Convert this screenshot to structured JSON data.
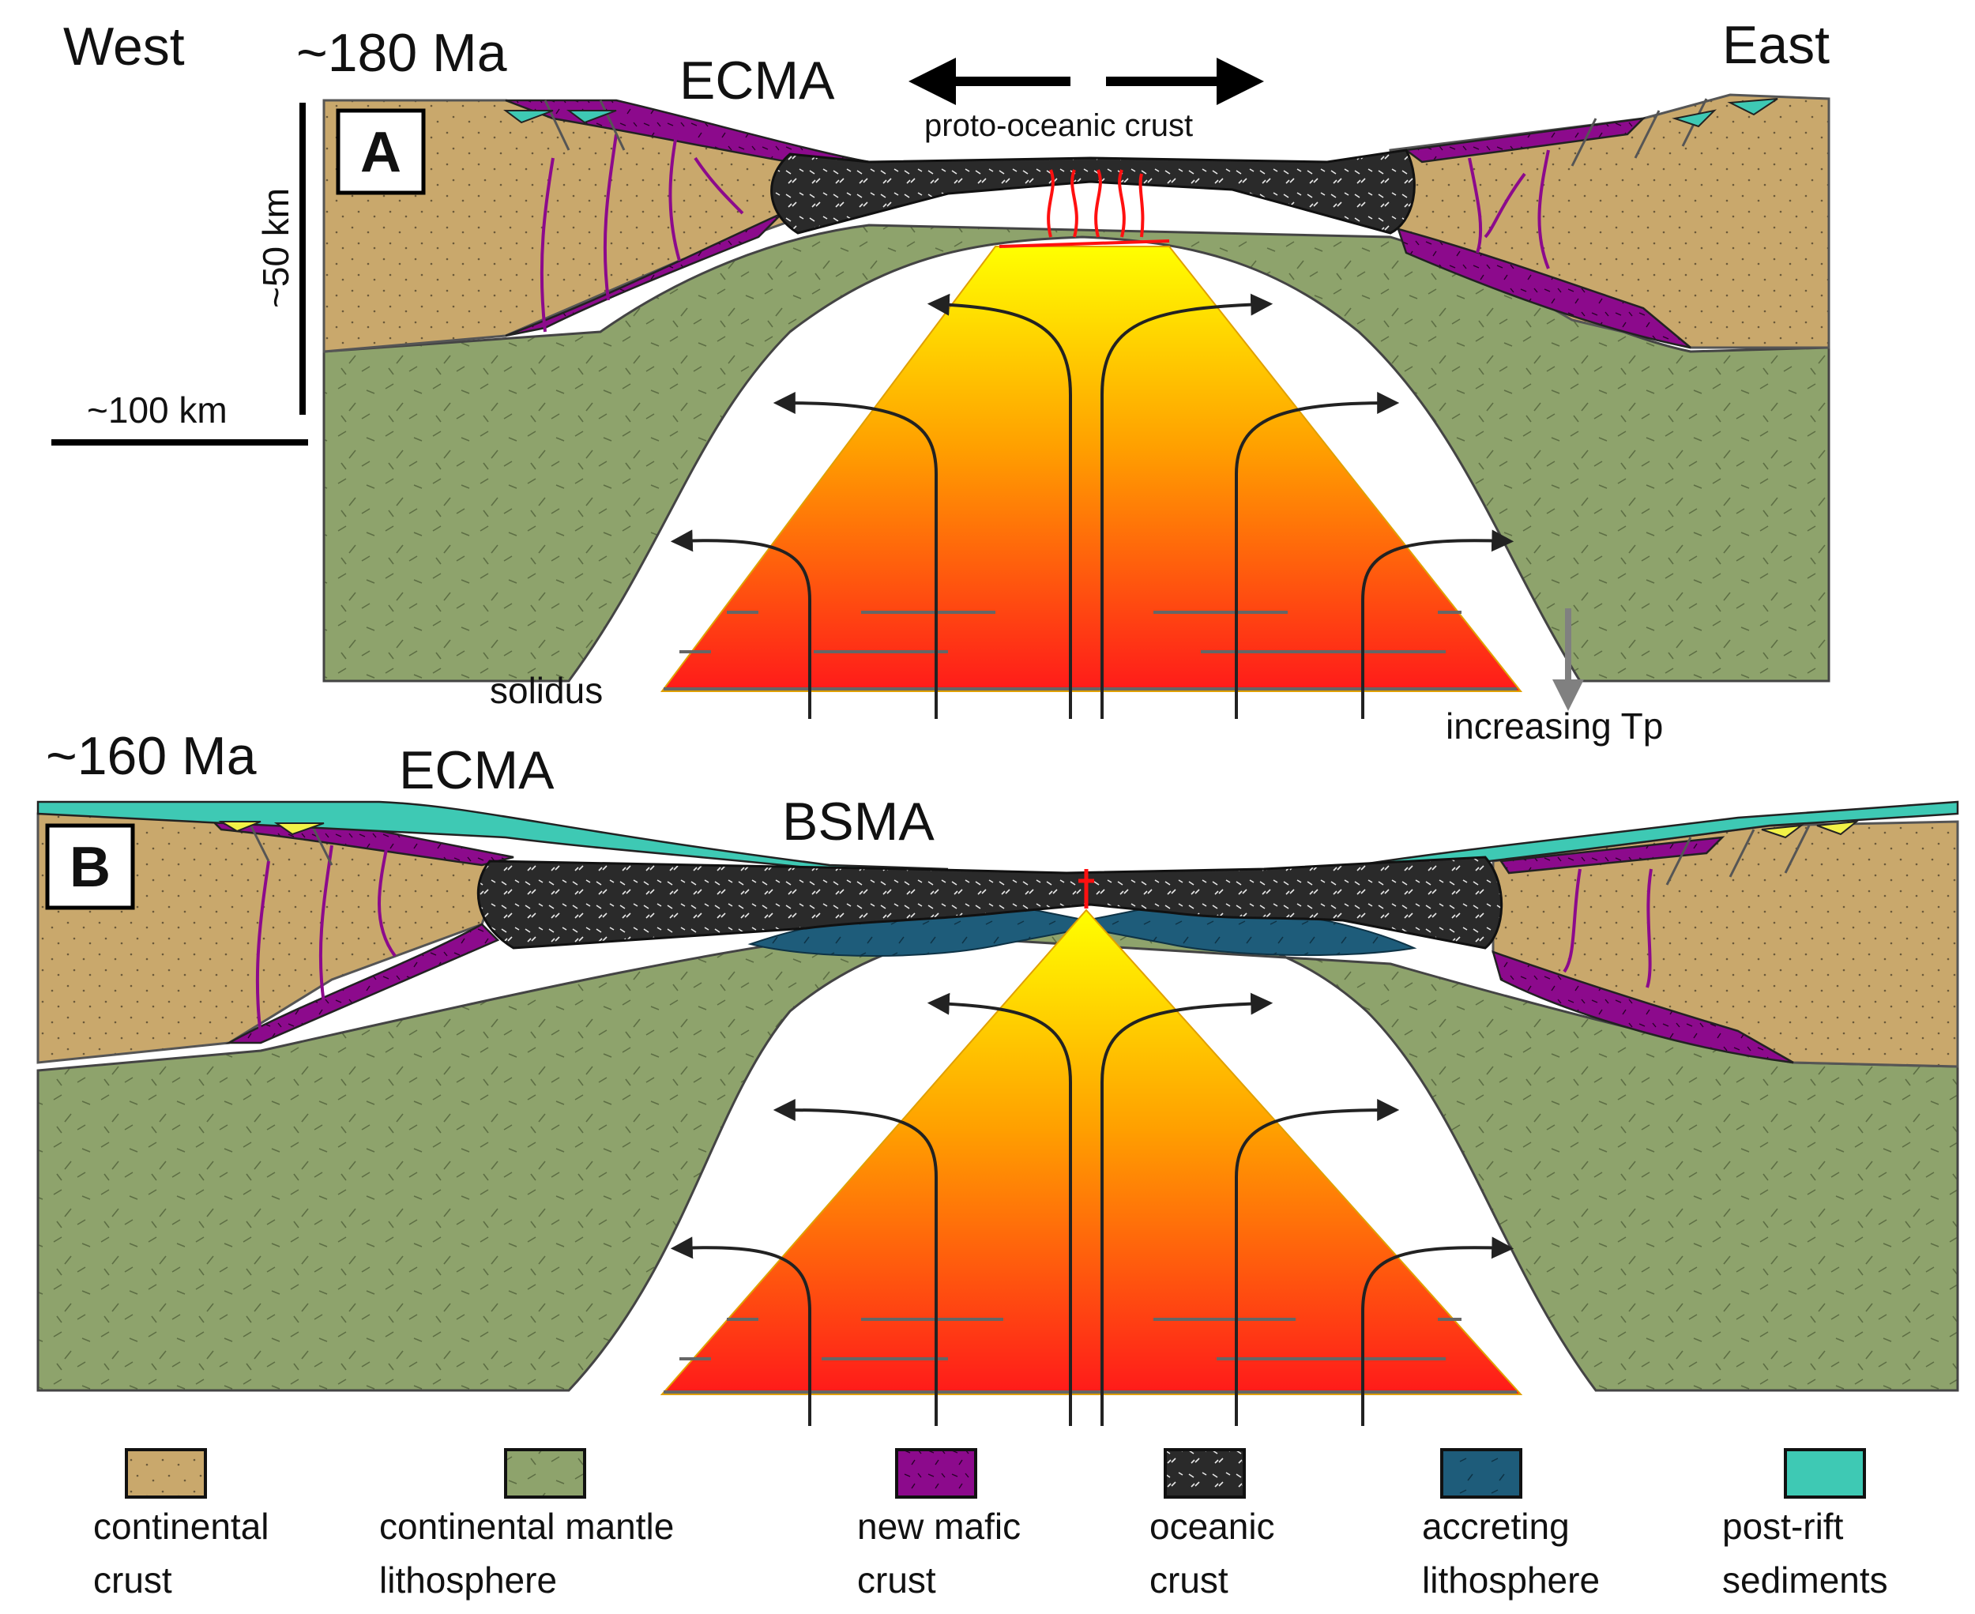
{
  "labels": {
    "west": "West",
    "east": "East",
    "age_a": "~180 Ma",
    "age_b": "~160 Ma",
    "ecma_a": "ECMA",
    "ecma_b": "ECMA",
    "bsma": "BSMA",
    "proto_oceanic": "proto-oceanic crust",
    "scale_vertical": "~50 km",
    "scale_horizontal": "~100 km",
    "solidus": "solidus",
    "increasing_tp": "increasing Tp",
    "panel_a": "A",
    "panel_b": "B"
  },
  "legend": [
    {
      "line1": "continental",
      "line2": "crust",
      "color": "#c9a86c"
    },
    {
      "line1": "continental mantle",
      "line2": "lithosphere",
      "color": "#8ea36c"
    },
    {
      "line1": "new mafic",
      "line2": "crust",
      "color": "#8c0a8c"
    },
    {
      "line1": "oceanic",
      "line2": "crust",
      "color": "#2a2a2a"
    },
    {
      "line1": "accreting",
      "line2": "lithosphere",
      "color": "#1e5c7a"
    },
    {
      "line1": "post-rift",
      "line2": "sediments",
      "color": "#3ec9b4"
    }
  ],
  "colors": {
    "crust": "#c9a86c",
    "mantle": "#8ea36c",
    "mafic": "#8c0a8c",
    "oceanic": "#2a2a2a",
    "accreting": "#1e5c7a",
    "sediments": "#3ec9b4",
    "melt_top": "#ffff00",
    "melt_bottom": "#ff1a1a"
  }
}
